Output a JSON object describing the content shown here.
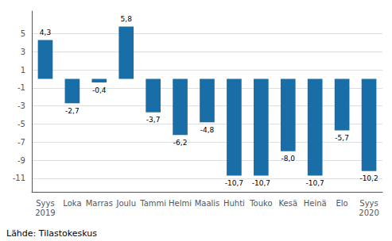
{
  "chart_data": {
    "type": "bar",
    "categories": [
      "Syys\n2019",
      "Loka",
      "Marras",
      "Joulu",
      "Tammi",
      "Helmi",
      "Maalis",
      "Huhti",
      "Touko",
      "Kesä",
      "Heinä",
      "Elo",
      "Syys\n2020"
    ],
    "values": [
      4.3,
      -2.7,
      -0.4,
      5.8,
      -3.7,
      -6.2,
      -4.8,
      -10.7,
      -10.7,
      -8.0,
      -10.7,
      -5.7,
      -10.2
    ],
    "value_labels": [
      "4,3",
      "-2,7",
      "-0,4",
      "5,8",
      "-3,7",
      "-6,2",
      "-4,8",
      "-10,7",
      "-10,7",
      "-8,0",
      "-10,7",
      "-5,7",
      "-10,2"
    ],
    "color": "#1a6ea8",
    "ylim": [
      -12.5,
      7.5
    ],
    "yticks": [
      -11,
      -9,
      -7,
      -5,
      -3,
      -1,
      1,
      3,
      5
    ],
    "grid": true,
    "data_labels": true,
    "annotations": [
      "Lähde: Tilastokeskus"
    ]
  }
}
